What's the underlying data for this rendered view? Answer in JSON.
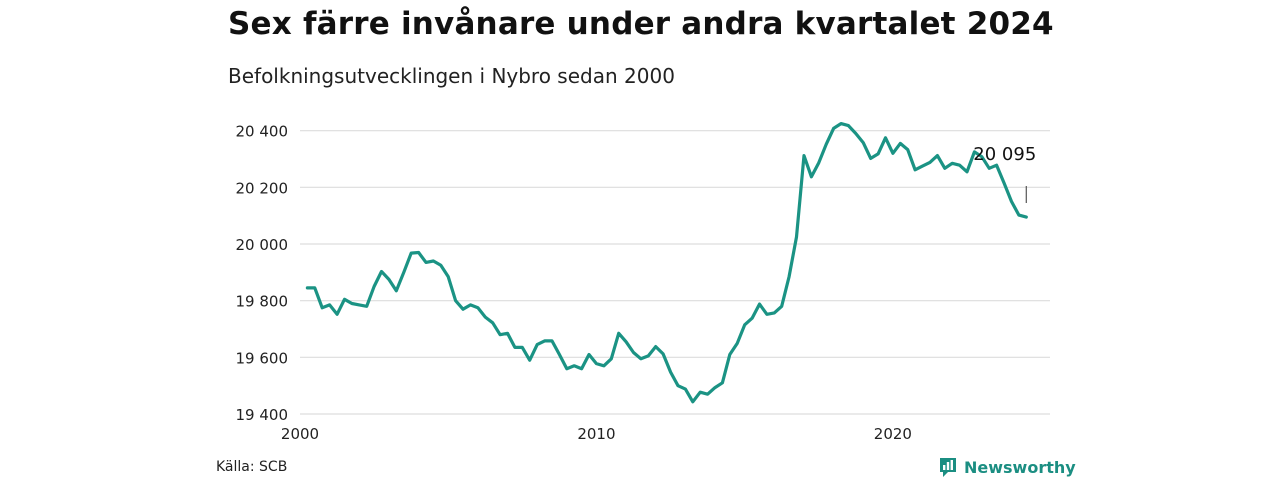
{
  "header": {
    "title": "Sex färre invånare under andra kvartalet 2024",
    "subtitle": "Befolkningsutvecklingen i Nybro sedan 2000"
  },
  "footer": {
    "source": "Källa: SCB",
    "brand": "Newsworthy"
  },
  "colors": {
    "line": "#1b9384",
    "grid": "#dddddd",
    "brand": "#1b8e82"
  },
  "chart_data": {
    "type": "line",
    "title": "Sex färre invånare under andra kvartalet 2024",
    "subtitle": "Befolkningsutvecklingen i Nybro sedan 2000",
    "xlim": [
      2000,
      2025.3
    ],
    "ylim": [
      19400,
      20480
    ],
    "y_ticks": [
      19400,
      19600,
      19800,
      20000,
      20200,
      20400
    ],
    "y_tick_labels": [
      "19 400",
      "19 600",
      "19 800",
      "20 000",
      "20 200",
      "20 400"
    ],
    "x_ticks": [
      2000,
      2010,
      2020
    ],
    "x_tick_labels": [
      "2000",
      "2010",
      "2020"
    ],
    "grid": true,
    "annotation": {
      "label": "20 095",
      "x": 2024.5,
      "y": 20095
    },
    "series": [
      {
        "x": [
          2000.25,
          2000.5,
          2000.75,
          2001,
          2001.25,
          2001.5,
          2001.75,
          2002,
          2002.25,
          2002.5,
          2002.75,
          2003,
          2003.25,
          2003.5,
          2003.75,
          2004,
          2004.25,
          2004.5,
          2004.75,
          2005,
          2005.25,
          2005.5,
          2005.75,
          2006,
          2006.25,
          2006.5,
          2006.75,
          2007,
          2007.25,
          2007.5,
          2007.75,
          2008,
          2008.25,
          2008.5,
          2008.75,
          2009,
          2009.25,
          2009.5,
          2009.75,
          2010,
          2010.25,
          2010.5,
          2010.75,
          2011,
          2011.25,
          2011.5,
          2011.75,
          2012,
          2012.25,
          2012.5,
          2012.75,
          2013,
          2013.25,
          2013.5,
          2013.75,
          2014,
          2014.25,
          2014.5,
          2014.75,
          2015,
          2015.25,
          2015.5,
          2015.75,
          2016,
          2016.25,
          2016.5,
          2016.75,
          2017,
          2017.25,
          2017.5,
          2017.75,
          2018,
          2018.25,
          2018.5,
          2018.75,
          2019,
          2019.25,
          2019.5,
          2019.75,
          2020,
          2020.25,
          2020.5,
          2020.75,
          2021,
          2021.25,
          2021.5,
          2021.75,
          2022,
          2022.25,
          2022.5,
          2022.75,
          2023,
          2023.25,
          2023.5,
          2023.75,
          2024,
          2024.25,
          2024.5
        ],
        "y": [
          19845,
          19845,
          19775,
          19785,
          19752,
          19805,
          19790,
          19785,
          19780,
          19850,
          19903,
          19875,
          19835,
          19900,
          19968,
          19970,
          19935,
          19940,
          19925,
          19885,
          19800,
          19770,
          19785,
          19775,
          19742,
          19722,
          19680,
          19685,
          19635,
          19635,
          19590,
          19645,
          19658,
          19658,
          19610,
          19560,
          19570,
          19560,
          19610,
          19578,
          19570,
          19595,
          19685,
          19655,
          19617,
          19595,
          19605,
          19638,
          19612,
          19548,
          19500,
          19488,
          19443,
          19477,
          19470,
          19493,
          19510,
          19610,
          19650,
          19715,
          19738,
          19788,
          19752,
          19757,
          19780,
          19885,
          20025,
          20312,
          20237,
          20287,
          20352,
          20408,
          20425,
          20418,
          20390,
          20358,
          20302,
          20318,
          20375,
          20320,
          20355,
          20333,
          20262,
          20275,
          20288,
          20312,
          20267,
          20285,
          20278,
          20255,
          20325,
          20308,
          20267,
          20278,
          20215,
          20150,
          20102,
          20095
        ]
      }
    ]
  }
}
